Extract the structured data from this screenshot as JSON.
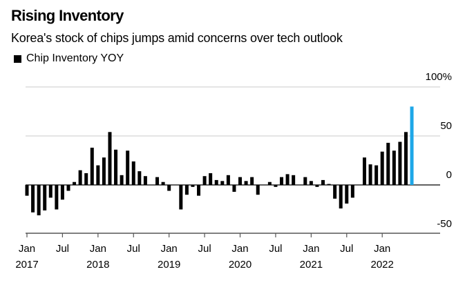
{
  "header": {
    "title": "Rising Inventory",
    "subtitle": "Korea's stock of chips jumps amid concerns over tech outlook"
  },
  "chart_data": {
    "type": "bar",
    "title": "Rising Inventory",
    "subtitle": "Korea's stock of chips jumps amid concerns over tech outlook",
    "xlabel": "",
    "ylabel": "",
    "ylim": [
      -50,
      100
    ],
    "y_ticks": [
      {
        "value": 100,
        "label": "100%"
      },
      {
        "value": 50,
        "label": "50"
      },
      {
        "value": 0,
        "label": "0"
      },
      {
        "value": -50,
        "label": "-50"
      }
    ],
    "x_ticks": [
      {
        "index": 0,
        "label": "Jan",
        "year": "2017"
      },
      {
        "index": 6,
        "label": "Jul",
        "year": ""
      },
      {
        "index": 12,
        "label": "Jan",
        "year": "2018"
      },
      {
        "index": 18,
        "label": "Jul",
        "year": ""
      },
      {
        "index": 24,
        "label": "Jan",
        "year": "2019"
      },
      {
        "index": 30,
        "label": "Jul",
        "year": ""
      },
      {
        "index": 36,
        "label": "Jan",
        "year": "2020"
      },
      {
        "index": 42,
        "label": "Jul",
        "year": ""
      },
      {
        "index": 48,
        "label": "Jan",
        "year": "2021"
      },
      {
        "index": 54,
        "label": "Jul",
        "year": ""
      },
      {
        "index": 60,
        "label": "Jan",
        "year": "2022"
      }
    ],
    "grid": true,
    "legend": {
      "position": "top-left",
      "entries": [
        {
          "name": "Chip Inventory YOY",
          "color": "#000000"
        }
      ]
    },
    "highlight_color": "#1ea7e8",
    "bar_color": "#000000",
    "start": "2017-01",
    "series": [
      {
        "name": "Chip Inventory YOY",
        "x": [
          "2017-01",
          "2017-02",
          "2017-03",
          "2017-04",
          "2017-05",
          "2017-06",
          "2017-07",
          "2017-08",
          "2017-09",
          "2017-10",
          "2017-11",
          "2017-12",
          "2018-01",
          "2018-02",
          "2018-03",
          "2018-04",
          "2018-05",
          "2018-06",
          "2018-07",
          "2018-08",
          "2018-09",
          "2018-10",
          "2018-11",
          "2018-12",
          "2019-01",
          "2019-02",
          "2019-03",
          "2019-04",
          "2019-05",
          "2019-06",
          "2019-07",
          "2019-08",
          "2019-09",
          "2019-10",
          "2019-11",
          "2019-12",
          "2020-01",
          "2020-02",
          "2020-03",
          "2020-04",
          "2020-05",
          "2020-06",
          "2020-07",
          "2020-08",
          "2020-09",
          "2020-10",
          "2020-11",
          "2020-12",
          "2021-01",
          "2021-02",
          "2021-03",
          "2021-04",
          "2021-05",
          "2021-06",
          "2021-07",
          "2021-08",
          "2021-09",
          "2021-10",
          "2021-11",
          "2021-12",
          "2022-01",
          "2022-02",
          "2022-03",
          "2022-04",
          "2022-05",
          "2022-06"
        ],
        "values": [
          -11,
          -28,
          -31,
          -26,
          -13,
          -25,
          -15,
          -6,
          3,
          15,
          12,
          38,
          20,
          28,
          54,
          36,
          10,
          35,
          24,
          14,
          9,
          0,
          8,
          3,
          -6,
          0,
          -25,
          -10,
          -2,
          -11,
          9,
          12,
          5,
          4,
          10,
          -7,
          8,
          4,
          8,
          -10,
          0,
          3,
          -2,
          8,
          11,
          10,
          0,
          8,
          4,
          -2,
          5,
          1,
          -14,
          -24,
          -19,
          -13,
          0,
          28,
          21,
          20,
          34,
          43,
          35,
          44,
          54,
          80
        ],
        "highlight_last": true
      }
    ]
  }
}
